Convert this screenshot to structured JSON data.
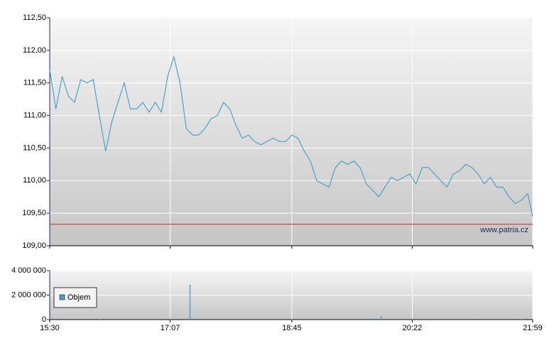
{
  "chart_data": [
    {
      "type": "line",
      "color": "#4aa3c8",
      "x": [
        "15:30",
        "15:35",
        "15:40",
        "15:45",
        "15:50",
        "15:55",
        "16:00",
        "16:05",
        "16:10",
        "16:15",
        "16:20",
        "16:25",
        "16:30",
        "16:35",
        "16:40",
        "16:45",
        "16:50",
        "16:55",
        "17:00",
        "17:05",
        "17:10",
        "17:15",
        "17:20",
        "17:25",
        "17:30",
        "17:35",
        "17:40",
        "17:45",
        "17:50",
        "17:55",
        "18:00",
        "18:05",
        "18:10",
        "18:15",
        "18:20",
        "18:25",
        "18:30",
        "18:35",
        "18:40",
        "18:45",
        "18:50",
        "18:55",
        "19:00",
        "19:05",
        "19:10",
        "19:15",
        "19:20",
        "19:25",
        "19:30",
        "19:35",
        "19:40",
        "19:45",
        "19:50",
        "19:55",
        "20:00",
        "20:05",
        "20:10",
        "20:15",
        "20:20",
        "20:25",
        "20:30",
        "20:35",
        "20:40",
        "20:45",
        "20:50",
        "20:55",
        "21:00",
        "21:05",
        "21:10",
        "21:15",
        "21:20",
        "21:25",
        "21:30",
        "21:35",
        "21:40",
        "21:45",
        "21:50",
        "21:55",
        "21:59"
      ],
      "values": [
        111.7,
        111.1,
        111.6,
        111.3,
        111.2,
        111.55,
        111.5,
        111.55,
        111.0,
        110.45,
        110.9,
        111.2,
        111.5,
        111.1,
        111.1,
        111.2,
        111.05,
        111.2,
        111.05,
        111.6,
        111.9,
        111.5,
        110.8,
        110.7,
        110.7,
        110.8,
        110.95,
        111.0,
        111.2,
        111.1,
        110.85,
        110.65,
        110.7,
        110.6,
        110.55,
        110.6,
        110.65,
        110.6,
        110.6,
        110.7,
        110.65,
        110.45,
        110.3,
        110.0,
        109.95,
        109.9,
        110.2,
        110.3,
        110.25,
        110.3,
        110.2,
        109.95,
        109.85,
        109.75,
        109.9,
        110.05,
        110.0,
        110.05,
        110.1,
        109.95,
        110.2,
        110.2,
        110.1,
        110.0,
        109.9,
        110.1,
        110.15,
        110.25,
        110.2,
        110.1,
        109.95,
        110.05,
        109.9,
        109.9,
        109.75,
        109.65,
        109.7,
        109.8,
        109.45
      ],
      "xlim": [
        "15:30",
        "21:59"
      ],
      "xticks": [
        "15:30",
        "17:07",
        "18:45",
        "20:22",
        "21:59"
      ],
      "ylim": [
        109,
        112.5
      ],
      "yticks": [
        {
          "value": 109,
          "label": "109,00"
        },
        {
          "value": 109.5,
          "label": "109,50"
        },
        {
          "value": 110,
          "label": "110,00"
        },
        {
          "value": 110.5,
          "label": "110,50"
        },
        {
          "value": 111,
          "label": "111,00"
        },
        {
          "value": 111.5,
          "label": "111,50"
        },
        {
          "value": 112,
          "label": "112,00"
        },
        {
          "value": 112.5,
          "label": "112,50"
        }
      ],
      "reference_line": 109.33,
      "reference_color": "#cc2222",
      "grid": true,
      "watermark": "www.patria.cz"
    },
    {
      "type": "bar",
      "x": [
        "15:30",
        "16:10",
        "17:23",
        "18:45",
        "19:35",
        "19:50",
        "19:57",
        "20:22",
        "21:10",
        "21:50"
      ],
      "series": [
        {
          "name": "Objem",
          "color": "#4aa3c8",
          "values": [
            50000,
            30000,
            2850000,
            40000,
            60000,
            100000,
            300000,
            80000,
            60000,
            50000
          ]
        }
      ],
      "xlim": [
        "15:30",
        "21:59"
      ],
      "xticks": [
        "15:30",
        "17:07",
        "18:45",
        "20:22",
        "21:59"
      ],
      "ylim": [
        0,
        4000000
      ],
      "yticks": [
        0,
        {
          "value": 2000000,
          "label": "2 000 000"
        },
        {
          "value": 4000000,
          "label": "4 000 000"
        }
      ],
      "grid": true,
      "legend": "upper-left"
    }
  ]
}
